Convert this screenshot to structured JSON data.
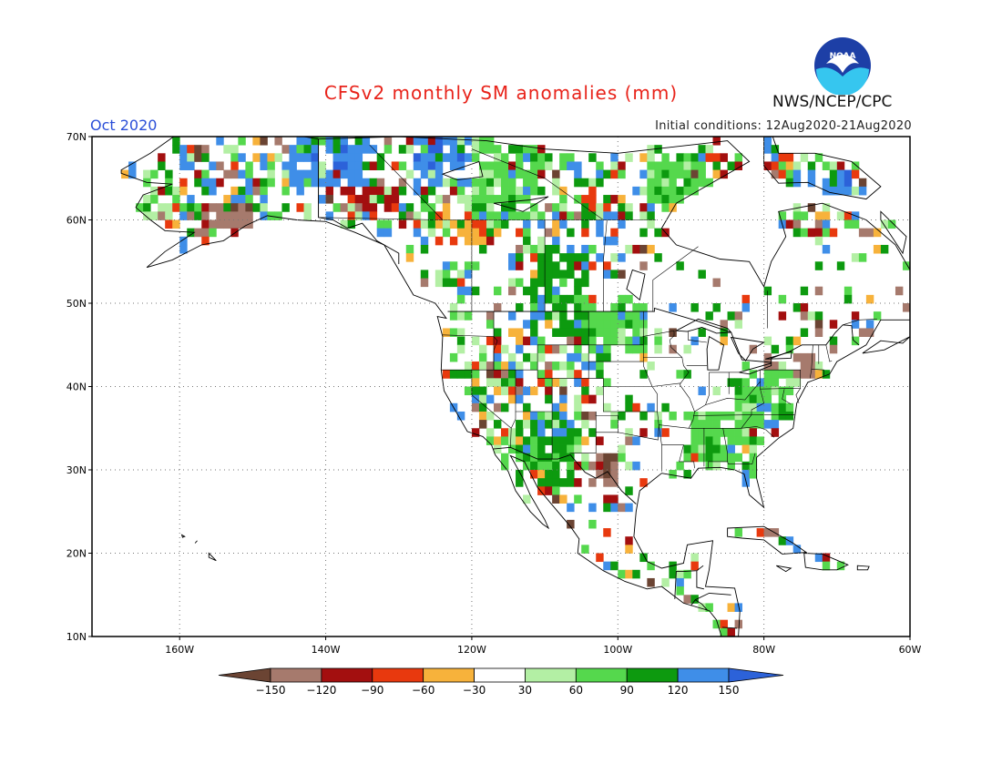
{
  "title": "CFSv2 monthly SM anomalies (mm)",
  "valid_month": "Oct 2020",
  "initial_conditions": "Initial conditions: 12Aug2020-21Aug2020",
  "agency": "NWS/NCEP/CPC",
  "logo_text": "NOAA",
  "map": {
    "lon_range": [
      -172,
      -60
    ],
    "lat_range": [
      10,
      70
    ],
    "lat_labels": [
      "10N",
      "20N",
      "30N",
      "40N",
      "50N",
      "60N",
      "70N"
    ],
    "lon_labels": [
      "160W",
      "140W",
      "120W",
      "100W",
      "80W",
      "60W"
    ],
    "grid": "dotted"
  },
  "colorbar": {
    "labels": [
      "−150",
      "−120",
      "−90",
      "−60",
      "−30",
      "30",
      "60",
      "90",
      "120",
      "150"
    ],
    "colors": [
      "#6b4433",
      "#a67a6d",
      "#a30f0f",
      "#e8390e",
      "#f7b23b",
      "#ffffff",
      "#b3efa4",
      "#55d84d",
      "#0d9a0f",
      "#3f8ee8",
      "#2c62d9"
    ]
  },
  "chart_data": {
    "type": "heatmap",
    "title": "CFSv2 monthly SM anomalies (mm)",
    "units": "mm",
    "xlim": [
      -172,
      -60
    ],
    "ylim": [
      10,
      70
    ],
    "x_ticks": [
      "160W",
      "140W",
      "120W",
      "100W",
      "80W",
      "60W"
    ],
    "y_ticks": [
      "10N",
      "20N",
      "30N",
      "40N",
      "50N",
      "60N",
      "70N"
    ],
    "color_levels": [
      -150,
      -120,
      -90,
      -60,
      -30,
      30,
      60,
      90,
      120,
      150
    ],
    "regions": [
      {
        "lon": [
          -145,
          -134
        ],
        "lat": [
          64,
          70
        ],
        "level": 135
      },
      {
        "lon": [
          -128,
          -120
        ],
        "lat": [
          64,
          70
        ],
        "level": 135
      },
      {
        "lon": [
          -120,
          -110
        ],
        "lat": [
          60,
          70
        ],
        "level": 75
      },
      {
        "lon": [
          -112,
          -104
        ],
        "lat": [
          46,
          56
        ],
        "level": 105
      },
      {
        "lon": [
          -104,
          -96
        ],
        "lat": [
          44,
          50
        ],
        "level": 75
      },
      {
        "lon": [
          -96,
          -88
        ],
        "lat": [
          62,
          68
        ],
        "level": 75
      },
      {
        "lon": [
          -114,
          -106
        ],
        "lat": [
          28,
          36
        ],
        "level": 105
      },
      {
        "lon": [
          -112,
          -108
        ],
        "lat": [
          28,
          34
        ],
        "level": 135
      },
      {
        "lon": [
          -90,
          -80
        ],
        "lat": [
          30,
          37
        ],
        "level": 75
      },
      {
        "lon": [
          -84,
          -76
        ],
        "lat": [
          36,
          42
        ],
        "level": 75
      },
      {
        "lon": [
          -104,
          -100
        ],
        "lat": [
          28,
          32
        ],
        "level": -135
      },
      {
        "lon": [
          -157,
          -150
        ],
        "lat": [
          59,
          62
        ],
        "level": -135
      },
      {
        "lon": [
          -138,
          -130
        ],
        "lat": [
          61,
          64
        ],
        "level": -105
      },
      {
        "lon": [
          -125,
          -118
        ],
        "lat": [
          57,
          61
        ],
        "level": -45
      },
      {
        "lon": [
          -80,
          -73
        ],
        "lat": [
          41,
          44
        ],
        "level": -135
      },
      {
        "lon": [
          -76,
          -68
        ],
        "lat": [
          63,
          66
        ],
        "level": 135
      }
    ]
  }
}
